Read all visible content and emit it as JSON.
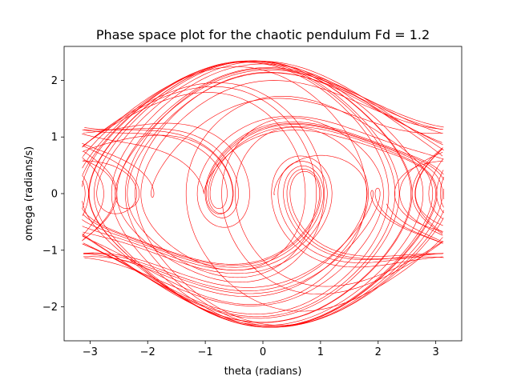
{
  "chart_data": {
    "type": "scatter",
    "title": "Phase space plot for the chaotic pendulum Fd = 1.2",
    "xlabel": "theta (radians)",
    "ylabel": "omega (radians/s)",
    "xlim": [
      -3.45,
      3.45
    ],
    "ylim": [
      -2.6,
      2.6
    ],
    "xticks": [
      -3,
      -2,
      -1,
      0,
      1,
      2,
      3
    ],
    "xtick_labels": [
      "−3",
      "−2",
      "−1",
      "0",
      "1",
      "2",
      "3"
    ],
    "yticks": [
      -2,
      -1,
      0,
      1,
      2
    ],
    "ytick_labels": [
      "−2",
      "−1",
      "0",
      "1",
      "2"
    ],
    "grid": false,
    "series": [
      {
        "color": "#ff0000",
        "marker": "pixel",
        "linewidth": 0
      }
    ],
    "trajectory_model": {
      "theta_range": [
        -3.14159,
        3.14159
      ],
      "omega_envelope_max": 2.35,
      "omega_edge_band": [
        -1.18,
        1.18
      ],
      "vortex_centers": [
        {
          "theta": -0.85,
          "omega": 0.05
        },
        {
          "theta": 0.75,
          "omega": 0.0
        },
        {
          "theta": -2.35,
          "omega": 0.0
        },
        {
          "theta": 2.6,
          "omega": 0.0
        }
      ]
    }
  }
}
